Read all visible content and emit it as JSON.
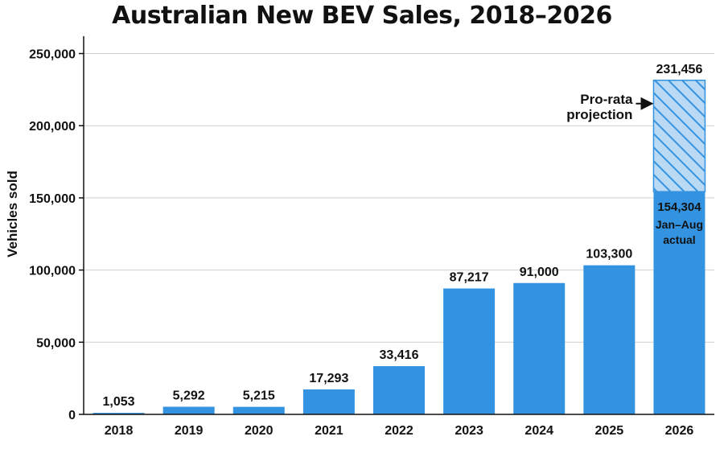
{
  "chart_data": {
    "type": "bar",
    "title": "Australian New BEV Sales, 2018–2026",
    "ylabel": "Vehicles sold",
    "xlabel": "",
    "ylim": [
      0,
      250000
    ],
    "yticks": [
      0,
      50000,
      100000,
      150000,
      200000,
      250000
    ],
    "ytick_labels": [
      "0",
      "50,000",
      "100,000",
      "150,000",
      "200,000",
      "250,000"
    ],
    "grid": true,
    "bar_color": "#3493e0",
    "categories": [
      "2018",
      "2019",
      "2020",
      "2021",
      "2022",
      "2023",
      "2024",
      "2025",
      "2026"
    ],
    "values": [
      1053,
      5292,
      5215,
      17293,
      33416,
      87217,
      91000,
      103300,
      154304
    ],
    "value_labels": [
      "1,053",
      "5,292",
      "5,215",
      "17,293",
      "33,416",
      "87,217",
      "91,000",
      "103,300",
      "154,304"
    ],
    "projection": {
      "category": "2026",
      "total": 231456,
      "total_label": "231,456",
      "actual_note_line1": "Jan–Aug",
      "actual_note_line2": "actual",
      "annotation_line1": "Pro-rata",
      "annotation_line2": "projection",
      "fill_color": "#b9d9f4"
    }
  }
}
